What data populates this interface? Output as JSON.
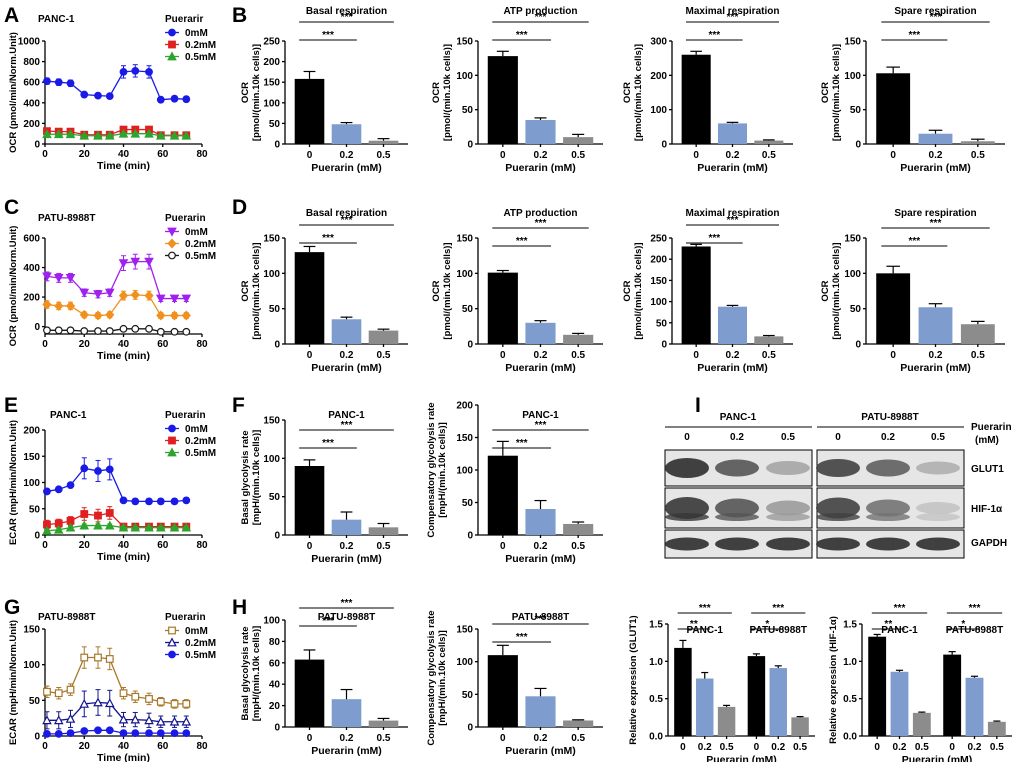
{
  "colors": {
    "black": "#000000",
    "blue": "#7f9cce",
    "gray": "#8c8c8c",
    "line_blue": "#1a1ae6",
    "line_red": "#e02020",
    "line_green": "#2ca52c",
    "line_purple": "#a020f0",
    "line_orange": "#f0901e",
    "line_black": "#1a1a1a",
    "line_brown": "#a8782a",
    "line_navy": "#14148c"
  },
  "panel_labels": [
    "A",
    "B",
    "C",
    "D",
    "E",
    "F",
    "G",
    "H",
    "I"
  ],
  "western_blot": {
    "cell_lines": [
      "PANC-1",
      "PATU-8988T"
    ],
    "lanes": [
      "0",
      "0.2",
      "0.5",
      "0",
      "0.2",
      "0.5"
    ],
    "treatment_label": "Puerarin",
    "unit_label": "(mM)",
    "bands": [
      "GLUT1",
      "HIF-1α",
      "GAPDH"
    ]
  },
  "chart_data": [
    {
      "id": "A",
      "type": "line",
      "title": "PANC-1",
      "legend_title": "Puerarir",
      "xlabel": "Time (min)",
      "ylabel": "OCR (pmol/min/Norm.Unit)",
      "xlim": [
        0,
        80
      ],
      "ylim": [
        0,
        1000
      ],
      "xticks": [
        0,
        20,
        40,
        60,
        80
      ],
      "yticks": [
        0,
        200,
        400,
        600,
        800,
        1000
      ],
      "x": [
        1,
        7,
        13,
        20,
        27,
        33,
        40,
        46,
        53,
        59,
        66,
        72
      ],
      "series": [
        {
          "name": "0mM",
          "marker": "circle",
          "color": "#1a1ae6",
          "values": [
            610,
            600,
            590,
            480,
            470,
            465,
            700,
            710,
            700,
            430,
            440,
            435
          ],
          "errors": [
            30,
            30,
            30,
            15,
            15,
            15,
            60,
            60,
            60,
            25,
            25,
            25
          ]
        },
        {
          "name": "0.2mM",
          "marker": "square",
          "color": "#e02020",
          "values": [
            125,
            120,
            120,
            90,
            90,
            90,
            140,
            140,
            140,
            85,
            85,
            85
          ],
          "errors": [
            12,
            12,
            12,
            8,
            8,
            8,
            12,
            12,
            12,
            8,
            8,
            8
          ]
        },
        {
          "name": "0.5mM",
          "marker": "triangle",
          "color": "#2ca52c",
          "values": [
            95,
            95,
            95,
            80,
            80,
            80,
            100,
            100,
            100,
            80,
            80,
            80
          ],
          "errors": [
            8,
            8,
            8,
            6,
            6,
            6,
            8,
            8,
            8,
            6,
            6,
            6
          ]
        }
      ]
    },
    {
      "id": "B1",
      "type": "bar",
      "title": "Basal respiration",
      "xlabel": "Puerarin (mM)",
      "ylabel": [
        "OCR",
        "[pmol/(min.10k cells)]"
      ],
      "categories": [
        "0",
        "0.2",
        "0.5"
      ],
      "values": [
        158,
        48,
        8
      ],
      "errors": [
        18,
        4,
        5
      ],
      "ylim": [
        0,
        250
      ],
      "yticks": [
        0,
        50,
        100,
        150,
        200,
        250
      ],
      "significance": [
        "***",
        "***"
      ]
    },
    {
      "id": "B2",
      "type": "bar",
      "title": "ATP production",
      "xlabel": "Puerarin (mM)",
      "ylabel": [
        "OCR",
        "[pmol/(min.10k cells)]"
      ],
      "categories": [
        "0",
        "0.2",
        "0.5"
      ],
      "values": [
        128,
        35,
        10
      ],
      "errors": [
        7,
        3,
        4
      ],
      "ylim": [
        0,
        150
      ],
      "yticks": [
        0,
        50,
        100,
        150
      ],
      "significance": [
        "***",
        "***"
      ]
    },
    {
      "id": "B3",
      "type": "bar",
      "title": "Maximal respiration",
      "xlabel": "Puerarin (mM)",
      "ylabel": [
        "OCR",
        "[pmol/(min.10k cells)]"
      ],
      "categories": [
        "0",
        "0.2",
        "0.5"
      ],
      "values": [
        260,
        60,
        10
      ],
      "errors": [
        10,
        3,
        2
      ],
      "ylim": [
        0,
        300
      ],
      "yticks": [
        0,
        100,
        200,
        300
      ],
      "significance": [
        "***",
        "***"
      ]
    },
    {
      "id": "B4",
      "type": "bar",
      "title": "Spare respiration",
      "xlabel": "Puerarin (mM)",
      "ylabel": [
        "OCR",
        "[pmol/(min.10k cells)]"
      ],
      "categories": [
        "0",
        "0.2",
        "0.5"
      ],
      "values": [
        103,
        15,
        4
      ],
      "errors": [
        9,
        5,
        3
      ],
      "ylim": [
        0,
        150
      ],
      "yticks": [
        0,
        50,
        100,
        150
      ],
      "significance": [
        "***",
        "***"
      ]
    },
    {
      "id": "C",
      "type": "line",
      "title": "PATU-8988T",
      "legend_title": "Puerarin",
      "xlabel": "Time (min)",
      "ylabel": "OCR (pmol/min/Norm.Unit)",
      "xlim": [
        0,
        80
      ],
      "ylim": [
        -50,
        600
      ],
      "xticks": [
        0,
        20,
        40,
        60,
        80
      ],
      "yticks": [
        0,
        200,
        400,
        600
      ],
      "x": [
        1,
        7,
        13,
        20,
        27,
        33,
        40,
        46,
        53,
        59,
        66,
        72
      ],
      "series": [
        {
          "name": "0mM",
          "marker": "triangle-down",
          "color": "#a020f0",
          "values": [
            340,
            330,
            330,
            230,
            220,
            230,
            430,
            440,
            440,
            190,
            190,
            190
          ],
          "errors": [
            30,
            30,
            30,
            25,
            25,
            25,
            50,
            50,
            50,
            20,
            20,
            20
          ]
        },
        {
          "name": "0.2mM",
          "marker": "diamond",
          "color": "#f0901e",
          "values": [
            150,
            140,
            140,
            80,
            75,
            80,
            210,
            215,
            210,
            75,
            75,
            75
          ],
          "errors": [
            25,
            25,
            25,
            20,
            20,
            20,
            30,
            30,
            30,
            20,
            20,
            20
          ]
        },
        {
          "name": "0.5mM",
          "marker": "circle-open",
          "color": "#1a1a1a",
          "values": [
            -25,
            -25,
            -25,
            -30,
            -30,
            -30,
            -15,
            -15,
            -15,
            -35,
            -35,
            -35
          ],
          "errors": [
            5,
            5,
            5,
            5,
            5,
            5,
            5,
            5,
            5,
            5,
            5,
            5
          ]
        }
      ]
    },
    {
      "id": "D1",
      "type": "bar",
      "title": "Basal respiration",
      "xlabel": "Puerarin (mM)",
      "ylabel": [
        "OCR",
        "[pmol/(min.10k cells)]"
      ],
      "categories": [
        "0",
        "0.2",
        "0.5"
      ],
      "values": [
        130,
        35,
        19
      ],
      "errors": [
        8,
        3,
        2
      ],
      "ylim": [
        0,
        150
      ],
      "yticks": [
        0,
        50,
        100,
        150
      ],
      "significance": [
        "***",
        "***"
      ]
    },
    {
      "id": "D2",
      "type": "bar",
      "title": "ATP production",
      "xlabel": "Puerarin (mM)",
      "ylabel": [
        "OCR",
        "[pmol/(min.10k cells)]"
      ],
      "categories": [
        "0",
        "0.2",
        "0.5"
      ],
      "values": [
        101,
        30,
        13
      ],
      "errors": [
        3,
        3,
        2
      ],
      "ylim": [
        0,
        150
      ],
      "yticks": [
        0,
        50,
        100,
        150
      ],
      "significance": [
        "***",
        "***"
      ]
    },
    {
      "id": "D3",
      "type": "bar",
      "title": "Maximal respiration",
      "xlabel": "Puerarin (mM)",
      "ylabel": [
        "OCR",
        "[pmol/(min.10k cells)]"
      ],
      "categories": [
        "0",
        "0.2",
        "0.5"
      ],
      "values": [
        230,
        88,
        18
      ],
      "errors": [
        5,
        3,
        2
      ],
      "ylim": [
        0,
        250
      ],
      "yticks": [
        0,
        50,
        100,
        150,
        200,
        250
      ],
      "significance": [
        "***",
        "***"
      ]
    },
    {
      "id": "D4",
      "type": "bar",
      "title": "Spare respiration",
      "xlabel": "Puerarin (mM)",
      "ylabel": [
        "OCR",
        "[pmol/(min.10k cells)]"
      ],
      "categories": [
        "0",
        "0.2",
        "0.5"
      ],
      "values": [
        100,
        52,
        28
      ],
      "errors": [
        10,
        5,
        4
      ],
      "ylim": [
        0,
        150
      ],
      "yticks": [
        0,
        50,
        100,
        150
      ],
      "significance": [
        "***",
        "***"
      ]
    },
    {
      "id": "E",
      "type": "line",
      "title": "PANC-1",
      "legend_title": "Puerarin",
      "xlabel": "Time (min)",
      "ylabel": "ECAR (mpH/min/Norm.Unit)",
      "xlim": [
        0,
        80
      ],
      "ylim": [
        0,
        200
      ],
      "xticks": [
        0,
        20,
        40,
        60,
        80
      ],
      "yticks": [
        0,
        50,
        100,
        150,
        200
      ],
      "x": [
        1,
        7,
        13,
        20,
        27,
        33,
        40,
        46,
        53,
        59,
        66,
        72
      ],
      "series": [
        {
          "name": "0mM",
          "marker": "circle",
          "color": "#1a1ae6",
          "values": [
            83,
            87,
            95,
            127,
            122,
            125,
            66,
            64,
            64,
            64,
            64,
            66
          ],
          "errors": [
            3,
            3,
            5,
            20,
            20,
            20,
            5,
            5,
            5,
            5,
            5,
            5
          ]
        },
        {
          "name": "0.2mM",
          "marker": "square",
          "color": "#e02020",
          "values": [
            20,
            22,
            27,
            40,
            37,
            42,
            16,
            16,
            16,
            16,
            16,
            16
          ],
          "errors": [
            8,
            8,
            8,
            12,
            12,
            12,
            4,
            4,
            4,
            4,
            4,
            4
          ]
        },
        {
          "name": "0.5mM",
          "marker": "triangle",
          "color": "#2ca52c",
          "values": [
            8,
            10,
            14,
            18,
            18,
            18,
            14,
            14,
            14,
            14,
            14,
            14
          ],
          "errors": [
            3,
            3,
            3,
            3,
            3,
            3,
            3,
            3,
            3,
            3,
            3,
            3
          ]
        }
      ]
    },
    {
      "id": "F1",
      "type": "bar",
      "title": "PANC-1",
      "xlabel": "Puerarin (mM)",
      "ylabel": [
        "Basal glycolysis rate",
        "[mpH/(min.10k cells)]"
      ],
      "categories": [
        "0",
        "0.2",
        "0.5"
      ],
      "values": [
        90,
        20,
        10
      ],
      "errors": [
        8,
        10,
        5
      ],
      "ylim": [
        0,
        150
      ],
      "yticks": [
        0,
        50,
        100,
        150
      ],
      "significance": [
        "***",
        "***"
      ]
    },
    {
      "id": "F2",
      "type": "bar",
      "title": "PANC-1",
      "xlabel": "Puerarin (mM)",
      "ylabel": [
        "Compensatory glycolysis rate",
        "[mpH/(min.10k cells)]"
      ],
      "categories": [
        "0",
        "0.2",
        "0.5"
      ],
      "values": [
        122,
        40,
        17
      ],
      "errors": [
        22,
        13,
        3
      ],
      "ylim": [
        0,
        200
      ],
      "yticks": [
        0,
        50,
        100,
        150,
        200
      ],
      "significance": [
        "***",
        "***"
      ]
    },
    {
      "id": "G",
      "type": "line",
      "title": "PATU-8988T",
      "legend_title": "Puerarin",
      "xlabel": "Time (min)",
      "ylabel": "ECAR (mpH/min/Norm.Unit)",
      "xlim": [
        0,
        80
      ],
      "ylim": [
        0,
        150
      ],
      "xticks": [
        0,
        20,
        40,
        60,
        80
      ],
      "yticks": [
        0,
        50,
        100,
        150
      ],
      "x": [
        1,
        7,
        13,
        20,
        27,
        33,
        40,
        46,
        53,
        59,
        66,
        72
      ],
      "series": [
        {
          "name": "0mM",
          "marker": "square-open",
          "color": "#a8782a",
          "values": [
            62,
            60,
            65,
            110,
            110,
            108,
            60,
            55,
            52,
            48,
            45,
            45
          ],
          "errors": [
            8,
            8,
            8,
            15,
            15,
            15,
            8,
            8,
            8,
            6,
            6,
            6
          ]
        },
        {
          "name": "0.2mM",
          "marker": "triangle-open",
          "color": "#14148c",
          "values": [
            22,
            22,
            24,
            45,
            47,
            46,
            23,
            23,
            22,
            20,
            20,
            20
          ],
          "errors": [
            12,
            12,
            12,
            18,
            18,
            18,
            10,
            10,
            10,
            8,
            8,
            8
          ]
        },
        {
          "name": "0.5mM",
          "marker": "circle",
          "color": "#1a1ae6",
          "values": [
            3,
            3,
            4,
            7,
            8,
            8,
            4,
            4,
            4,
            4,
            4,
            4
          ],
          "errors": [
            1,
            1,
            1,
            1,
            1,
            1,
            1,
            1,
            1,
            1,
            1,
            1
          ]
        }
      ]
    },
    {
      "id": "H1",
      "type": "bar",
      "title": "PATU-8988T",
      "xlabel": "Puerarin (mM)",
      "ylabel": [
        "Basal glycolysis rate",
        "[mpH/(min.10k cells)]"
      ],
      "categories": [
        "0",
        "0.2",
        "0.5"
      ],
      "values": [
        63,
        26,
        6
      ],
      "errors": [
        9,
        9,
        2
      ],
      "ylim": [
        0,
        100
      ],
      "yticks": [
        0,
        20,
        40,
        60,
        80,
        100
      ],
      "significance": [
        "***",
        "***"
      ]
    },
    {
      "id": "H2",
      "type": "bar",
      "title": "PATU-8988T",
      "xlabel": "Puerarin (mM)",
      "ylabel": [
        "Compensatory glycolysis rate",
        "[mpH/(min.10k cells)]"
      ],
      "categories": [
        "0",
        "0.2",
        "0.5"
      ],
      "values": [
        110,
        47,
        10
      ],
      "errors": [
        15,
        12,
        1
      ],
      "ylim": [
        0,
        150
      ],
      "yticks": [
        0,
        50,
        100,
        150
      ],
      "significance": [
        "***",
        "***"
      ]
    },
    {
      "id": "I1",
      "type": "bar",
      "title": "",
      "group_titles": [
        "PANC-1",
        "PATU-8988T"
      ],
      "xlabel": "Puerarin (mM)",
      "ylabel": [
        "Relative expression (GLUT1)"
      ],
      "categories": [
        "0",
        "0.2",
        "0.5",
        "0",
        "0.2",
        "0.5"
      ],
      "values": [
        1.18,
        0.77,
        0.39,
        1.07,
        0.91,
        0.25
      ],
      "errors": [
        0.1,
        0.08,
        0.02,
        0.03,
        0.03,
        0.01
      ],
      "ylim": [
        0,
        1.5
      ],
      "yticks": [
        0.0,
        0.5,
        1.0,
        1.5
      ],
      "significance": [
        "**",
        "***",
        "*",
        "***"
      ]
    },
    {
      "id": "I2",
      "type": "bar",
      "title": "",
      "group_titles": [
        "PANC-1",
        "PATU-8988T"
      ],
      "xlabel": "Puerarin (mM)",
      "ylabel": [
        "Relative expression (HIF-1α)"
      ],
      "categories": [
        "0",
        "0.2",
        "0.5",
        "0",
        "0.2",
        "0.5"
      ],
      "values": [
        1.33,
        0.86,
        0.31,
        1.09,
        0.78,
        0.19
      ],
      "errors": [
        0.03,
        0.02,
        0.01,
        0.04,
        0.02,
        0.01
      ],
      "ylim": [
        0,
        1.5
      ],
      "yticks": [
        0.0,
        0.5,
        1.0,
        1.5
      ],
      "significance": [
        "**",
        "***",
        "*",
        "***"
      ]
    }
  ]
}
